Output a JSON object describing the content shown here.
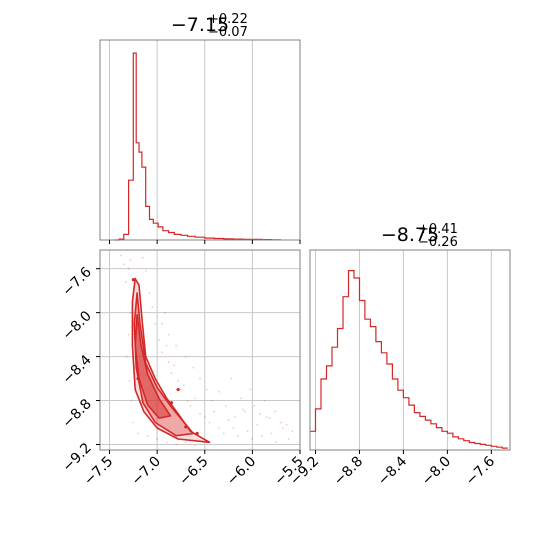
{
  "chart_data": {
    "type": "corner",
    "colors": {
      "series": "#d62728",
      "grid": "#c8c8c8",
      "frame": "#808080"
    },
    "grid": true,
    "panels": [
      {
        "id": "hist-param-1",
        "type": "histogram",
        "title": {
          "value": "−7.15",
          "sup": "+0.22",
          "sub": "−0.07"
        },
        "xlim": [
          -7.6,
          -5.5
        ],
        "ylim": [
          0,
          1.07
        ],
        "xticks": [
          -7.5,
          -7.0,
          -6.5,
          -6.0,
          -5.5
        ],
        "yticks": [],
        "bins": [
          -7.45,
          -7.4,
          -7.35,
          -7.3,
          -7.25,
          -7.22,
          -7.19,
          -7.16,
          -7.12,
          -7.08,
          -7.04,
          -6.99,
          -6.94,
          -6.88,
          -6.82,
          -6.75,
          -6.68,
          -6.6,
          -6.5,
          -6.4,
          -6.3,
          -6.2,
          -6.1,
          -6.0,
          -5.9,
          -5.8,
          -5.7
        ],
        "counts": [
          0.0,
          0.005,
          0.03,
          0.32,
          1.0,
          0.52,
          0.47,
          0.39,
          0.18,
          0.11,
          0.09,
          0.07,
          0.05,
          0.04,
          0.03,
          0.025,
          0.02,
          0.015,
          0.01,
          0.008,
          0.006,
          0.005,
          0.004,
          0.003,
          0.002,
          0.001
        ]
      },
      {
        "id": "hist-param-2",
        "type": "histogram",
        "title": {
          "value": "−8.75",
          "sup": "+0.41",
          "sub": "−0.26"
        },
        "xlim": [
          -9.25,
          -7.43
        ],
        "ylim": [
          0,
          1.07
        ],
        "xticks": [
          -9.2,
          -8.8,
          -8.4,
          -8.0,
          -7.6
        ],
        "xtick_labels": [
          "−9.2",
          "−8.8",
          "−8.4",
          "−8.0",
          "−7.6"
        ],
        "yticks": [],
        "bins": [
          -9.25,
          -9.2,
          -9.15,
          -9.1,
          -9.05,
          -9.0,
          -8.95,
          -8.9,
          -8.85,
          -8.8,
          -8.75,
          -8.7,
          -8.65,
          -8.6,
          -8.55,
          -8.5,
          -8.45,
          -8.4,
          -8.35,
          -8.3,
          -8.25,
          -8.2,
          -8.15,
          -8.1,
          -8.05,
          -8.0,
          -7.95,
          -7.9,
          -7.85,
          -7.8,
          -7.75,
          -7.7,
          -7.65,
          -7.6,
          -7.55,
          -7.5,
          -7.45
        ],
        "counts": [
          0.1,
          0.22,
          0.38,
          0.45,
          0.55,
          0.65,
          0.82,
          0.96,
          0.92,
          0.8,
          0.7,
          0.66,
          0.58,
          0.52,
          0.46,
          0.38,
          0.32,
          0.28,
          0.24,
          0.2,
          0.18,
          0.16,
          0.14,
          0.12,
          0.1,
          0.09,
          0.07,
          0.06,
          0.05,
          0.04,
          0.035,
          0.03,
          0.025,
          0.02,
          0.015,
          0.01
        ]
      },
      {
        "id": "joint-2d",
        "type": "contour",
        "xlim": [
          -7.6,
          -5.5
        ],
        "ylim": [
          -9.25,
          -7.43
        ],
        "xticks": [
          -7.5,
          -7.0,
          -6.5,
          -6.0,
          -5.5
        ],
        "xtick_labels": [
          "−7.5",
          "−7.0",
          "−6.5",
          "−6.0",
          "−5.5"
        ],
        "yticks": [
          -7.6,
          -8.0,
          -8.4,
          -8.8,
          -9.2
        ],
        "ytick_labels": [
          "−7.6",
          "−8.0",
          "−8.4",
          "−8.8",
          "−9.2"
        ],
        "contours": [
          [
            [
              -7.23,
              -7.69
            ],
            [
              -7.19,
              -7.75
            ],
            [
              -7.16,
              -8.05
            ],
            [
              -7.12,
              -8.4
            ],
            [
              -7.02,
              -8.6
            ],
            [
              -6.9,
              -8.78
            ],
            [
              -6.78,
              -8.92
            ],
            [
              -6.65,
              -9.08
            ],
            [
              -6.45,
              -9.18
            ],
            [
              -6.78,
              -9.15
            ],
            [
              -7.0,
              -9.05
            ],
            [
              -7.14,
              -8.9
            ],
            [
              -7.23,
              -8.7
            ],
            [
              -7.26,
              -8.3
            ],
            [
              -7.26,
              -7.9
            ]
          ],
          [
            [
              -7.21,
              -7.82
            ],
            [
              -7.18,
              -8.1
            ],
            [
              -7.12,
              -8.46
            ],
            [
              -7.0,
              -8.68
            ],
            [
              -6.85,
              -8.86
            ],
            [
              -6.62,
              -9.1
            ],
            [
              -6.8,
              -9.12
            ],
            [
              -7.02,
              -9.0
            ],
            [
              -7.15,
              -8.82
            ],
            [
              -7.22,
              -8.5
            ],
            [
              -7.24,
              -8.1
            ]
          ],
          [
            [
              -7.21,
              -8.02
            ],
            [
              -7.17,
              -8.3
            ],
            [
              -7.1,
              -8.56
            ],
            [
              -6.98,
              -8.78
            ],
            [
              -6.86,
              -8.94
            ],
            [
              -6.98,
              -8.96
            ],
            [
              -7.1,
              -8.84
            ],
            [
              -7.19,
              -8.6
            ],
            [
              -7.23,
              -8.3
            ]
          ]
        ],
        "samples": [
          [
            -7.38,
            -7.48
          ],
          [
            -7.35,
            -7.56
          ],
          [
            -7.33,
            -7.72
          ],
          [
            -7.3,
            -7.6
          ],
          [
            -7.28,
            -7.52
          ],
          [
            -7.15,
            -7.5
          ],
          [
            -7.12,
            -7.62
          ],
          [
            -7.08,
            -7.82
          ],
          [
            -7.05,
            -7.95
          ],
          [
            -7.02,
            -8.1
          ],
          [
            -6.98,
            -8.25
          ],
          [
            -6.95,
            -8.36
          ],
          [
            -6.9,
            -8.3
          ],
          [
            -6.88,
            -8.45
          ],
          [
            -6.85,
            -8.55
          ],
          [
            -6.82,
            -8.48
          ],
          [
            -6.78,
            -8.62
          ],
          [
            -6.75,
            -8.7
          ],
          [
            -6.72,
            -8.66
          ],
          [
            -6.68,
            -8.8
          ],
          [
            -6.65,
            -8.85
          ],
          [
            -6.6,
            -8.78
          ],
          [
            -6.55,
            -8.92
          ],
          [
            -6.5,
            -8.95
          ],
          [
            -6.45,
            -9.0
          ],
          [
            -6.4,
            -8.9
          ],
          [
            -6.35,
            -9.05
          ],
          [
            -6.3,
            -9.1
          ],
          [
            -6.25,
            -8.98
          ],
          [
            -6.2,
            -9.05
          ],
          [
            -6.15,
            -9.12
          ],
          [
            -6.1,
            -8.88
          ],
          [
            -6.05,
            -9.08
          ],
          [
            -6.0,
            -9.15
          ],
          [
            -5.95,
            -9.02
          ],
          [
            -5.9,
            -9.12
          ],
          [
            -5.85,
            -8.95
          ],
          [
            -5.8,
            -9.1
          ],
          [
            -5.75,
            -9.18
          ],
          [
            -5.68,
            -9.05
          ],
          [
            -5.62,
            -9.15
          ],
          [
            -7.28,
            -8.0
          ],
          [
            -7.3,
            -8.2
          ],
          [
            -7.32,
            -8.4
          ],
          [
            -7.29,
            -8.62
          ],
          [
            -7.27,
            -8.8
          ],
          [
            -7.25,
            -9.0
          ],
          [
            -7.2,
            -9.1
          ],
          [
            -7.1,
            -9.12
          ],
          [
            -7.0,
            -9.15
          ],
          [
            -6.9,
            -9.18
          ],
          [
            -6.8,
            -9.2
          ],
          [
            -6.7,
            -9.18
          ],
          [
            -6.6,
            -9.21
          ],
          [
            -6.95,
            -8.1
          ],
          [
            -6.92,
            -8.0
          ],
          [
            -6.88,
            -8.2
          ],
          [
            -6.8,
            -8.3
          ],
          [
            -6.7,
            -8.4
          ],
          [
            -6.62,
            -8.5
          ],
          [
            -6.55,
            -8.6
          ],
          [
            -6.48,
            -8.7
          ],
          [
            -6.42,
            -8.8
          ],
          [
            -6.35,
            -8.72
          ],
          [
            -6.28,
            -8.85
          ],
          [
            -6.22,
            -8.6
          ],
          [
            -6.18,
            -8.95
          ],
          [
            -6.12,
            -8.78
          ],
          [
            -6.08,
            -8.9
          ],
          [
            -6.02,
            -8.7
          ],
          [
            -5.98,
            -8.85
          ],
          [
            -5.92,
            -8.92
          ],
          [
            -5.87,
            -8.8
          ],
          [
            -5.82,
            -8.96
          ],
          [
            -5.76,
            -8.9
          ],
          [
            -5.7,
            -9.0
          ],
          [
            -5.64,
            -9.02
          ],
          [
            -5.58,
            -9.08
          ]
        ],
        "highlight_points": [
          [
            -7.25,
            -7.7
          ],
          [
            -7.2,
            -8.6
          ],
          [
            -6.85,
            -8.82
          ],
          [
            -6.78,
            -8.7
          ],
          [
            -6.7,
            -9.04
          ],
          [
            -6.58,
            -9.1
          ]
        ]
      }
    ]
  }
}
